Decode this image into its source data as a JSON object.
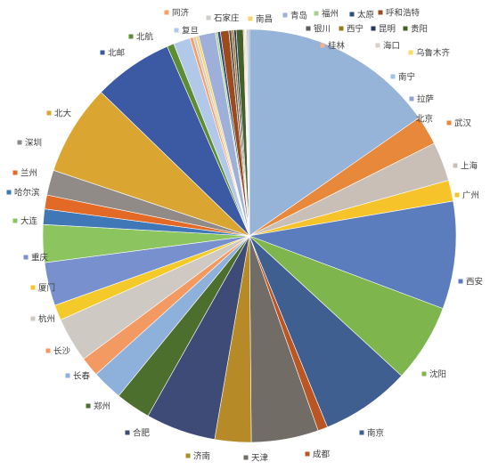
{
  "chart_data": {
    "type": "pie",
    "title": "",
    "start_angle_deg": 0,
    "direction": "clockwise",
    "legend": "none; category labels placed around the pie",
    "slices": [
      {
        "label": "北京",
        "value": 70.0,
        "color": "#95b4d8"
      },
      {
        "label": "武汉",
        "value": 10.5,
        "color": "#e7883b"
      },
      {
        "label": "上海",
        "value": 14.0,
        "color": "#c9bfb7"
      },
      {
        "label": "广州",
        "value": 7.5,
        "color": "#f6c32a"
      },
      {
        "label": "西安",
        "value": 38.5,
        "color": "#5b7dbd"
      },
      {
        "label": "沈阳",
        "value": 28.0,
        "color": "#7eb54c"
      },
      {
        "label": "南京",
        "value": 32.0,
        "color": "#3e5f8f"
      },
      {
        "label": "成都",
        "value": 3.5,
        "color": "#ba5623"
      },
      {
        "label": "天津",
        "value": 24.0,
        "color": "#726c66"
      },
      {
        "label": "济南",
        "value": 13.0,
        "color": "#b58a27"
      },
      {
        "label": "合肥",
        "value": 25.0,
        "color": "#3e4b77"
      },
      {
        "label": "郑州",
        "value": 12.5,
        "color": "#4d6f2e"
      },
      {
        "label": "长春",
        "value": 11.0,
        "color": "#8eb1dc"
      },
      {
        "label": "长沙",
        "value": 7.0,
        "color": "#f39a62"
      },
      {
        "label": "杭州",
        "value": 16.0,
        "color": "#cfc9c3"
      },
      {
        "label": "厦门",
        "value": 5.5,
        "color": "#f4ca2b"
      },
      {
        "label": "重庆",
        "value": 15.5,
        "color": "#7891ce"
      },
      {
        "label": "大连",
        "value": 13.5,
        "color": "#8cc45f"
      },
      {
        "label": "哈尔滨",
        "value": 5.5,
        "color": "#3f77b7"
      },
      {
        "label": "兰州",
        "value": 5.0,
        "color": "#e26a26"
      },
      {
        "label": "深圳",
        "value": 9.0,
        "color": "#908b87"
      },
      {
        "label": "北大",
        "value": 32.5,
        "color": "#dba532"
      },
      {
        "label": "北邮",
        "value": 28.5,
        "color": "#3b5aa3"
      },
      {
        "label": "北航",
        "value": 2.5,
        "color": "#5c8d35"
      },
      {
        "label": "复旦",
        "value": 6.0,
        "color": "#b2c8e8"
      },
      {
        "label": "同济",
        "value": 1.2,
        "color": "#f5a06a"
      },
      {
        "label": "石家庄",
        "value": 1.0,
        "color": "#d0ccc8"
      },
      {
        "label": "南昌",
        "value": 1.0,
        "color": "#f8d46a"
      },
      {
        "label": "青岛",
        "value": 6.0,
        "color": "#9eb0d9"
      },
      {
        "label": "福州",
        "value": 0.8,
        "color": "#a9d18e"
      },
      {
        "label": "太原",
        "value": 1.0,
        "color": "#2f4c7e"
      },
      {
        "label": "呼和浩特",
        "value": 3.0,
        "color": "#9c4a1c"
      },
      {
        "label": "银川",
        "value": 1.0,
        "color": "#5e5a56"
      },
      {
        "label": "西宁",
        "value": 0.8,
        "color": "#9c7620"
      },
      {
        "label": "昆明",
        "value": 0.8,
        "color": "#27355e"
      },
      {
        "label": "贵阳",
        "value": 2.5,
        "color": "#44612a"
      },
      {
        "label": "桂林",
        "value": 0.4,
        "color": "#f4b183"
      },
      {
        "label": "海口",
        "value": 0.4,
        "color": "#d5d0cb"
      },
      {
        "label": "乌鲁木齐",
        "value": 0.4,
        "color": "#ffd966"
      },
      {
        "label": "南宁",
        "value": 0.5,
        "color": "#9dc3e6"
      },
      {
        "label": "拉萨",
        "value": 0.5,
        "color": "#8fa2d4"
      }
    ]
  }
}
